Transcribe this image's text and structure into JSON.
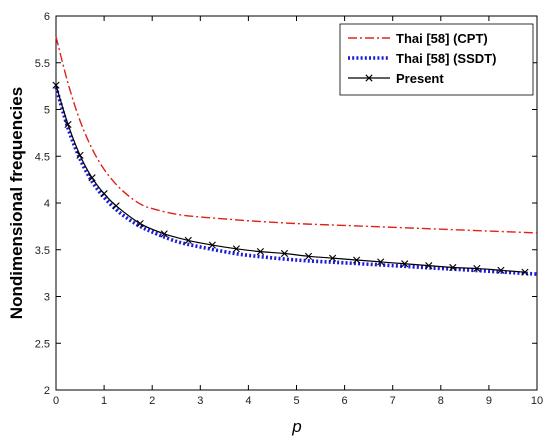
{
  "chart_data": {
    "type": "line",
    "xlabel": "p",
    "ylabel": "Nondimensional frequencies",
    "xlim": [
      0,
      10
    ],
    "ylim": [
      2,
      6
    ],
    "xticks": [
      0,
      1,
      2,
      3,
      4,
      5,
      6,
      7,
      8,
      9,
      10
    ],
    "yticks": [
      2,
      2.5,
      3,
      3.5,
      4,
      4.5,
      5,
      5.5,
      6
    ],
    "ytick_labels": [
      "2",
      "2.5",
      "3",
      "3.5",
      "4",
      "4.5",
      "5",
      "5.5",
      "6"
    ],
    "grid": false,
    "legend_position": "top-right",
    "series": [
      {
        "name": "Thai [58] (CPT)",
        "color": "#e0201b",
        "style": "dash-dot",
        "x": [
          0,
          0.25,
          0.5,
          0.75,
          1,
          1.25,
          1.5,
          1.75,
          2,
          2.5,
          3,
          3.5,
          4,
          5,
          6,
          7,
          8,
          9,
          10
        ],
        "y": [
          5.78,
          5.28,
          4.88,
          4.58,
          4.36,
          4.2,
          4.08,
          3.99,
          3.94,
          3.88,
          3.85,
          3.83,
          3.81,
          3.78,
          3.76,
          3.74,
          3.72,
          3.7,
          3.68
        ]
      },
      {
        "name": "Thai [58] (SSDT)",
        "color": "#1a1adc",
        "style": "dotted",
        "x": [
          0,
          0.25,
          0.5,
          0.75,
          1,
          1.25,
          1.5,
          1.75,
          2,
          2.5,
          3,
          3.5,
          4,
          5,
          6,
          7,
          8,
          9,
          10
        ],
        "y": [
          5.24,
          4.8,
          4.47,
          4.23,
          4.06,
          3.93,
          3.83,
          3.75,
          3.69,
          3.59,
          3.53,
          3.48,
          3.44,
          3.39,
          3.36,
          3.33,
          3.3,
          3.27,
          3.24
        ]
      },
      {
        "name": "Present",
        "color": "#000000",
        "style": "solid",
        "marker": "x",
        "x": [
          0,
          0.25,
          0.5,
          0.75,
          1,
          1.25,
          1.75,
          2.25,
          2.75,
          3.25,
          3.75,
          4.25,
          4.75,
          5.25,
          5.75,
          6.25,
          6.75,
          7.25,
          7.75,
          8.25,
          8.75,
          9.25,
          9.75
        ],
        "y": [
          5.26,
          4.84,
          4.51,
          4.27,
          4.1,
          3.97,
          3.78,
          3.67,
          3.6,
          3.55,
          3.51,
          3.48,
          3.46,
          3.43,
          3.41,
          3.39,
          3.37,
          3.35,
          3.33,
          3.31,
          3.3,
          3.28,
          3.26
        ]
      }
    ]
  }
}
